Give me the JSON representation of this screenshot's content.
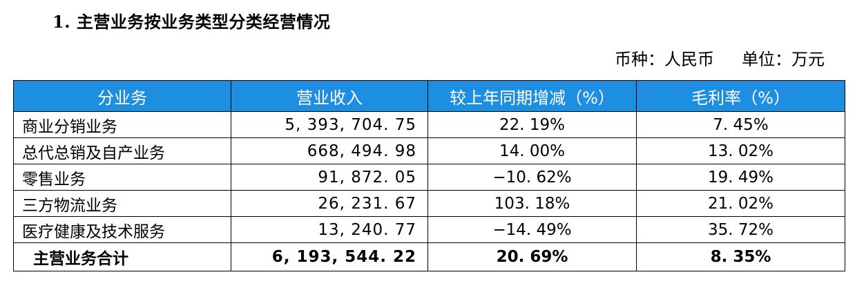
{
  "document": {
    "title": "1. 主营业务按业务类型分类经营情况",
    "currency_label": "币种：人民币",
    "unit_label": "单位：万元"
  },
  "table": {
    "headers": [
      "分业务",
      "营业收入",
      "较上年同期增减（%）",
      "毛利率（%）"
    ],
    "rows": [
      {
        "category": "商业分销业务",
        "revenue": "5, 393, 704. 75",
        "yoy_change": "22. 19%",
        "gross_margin": "7. 45%"
      },
      {
        "category": "总代总销及自产业务",
        "revenue": "668, 494. 98",
        "yoy_change": "14. 00%",
        "gross_margin": "13. 02%"
      },
      {
        "category": "零售业务",
        "revenue": "91, 872. 05",
        "yoy_change": "−10. 62%",
        "gross_margin": "19. 49%"
      },
      {
        "category": "三方物流业务",
        "revenue": "26, 231. 67",
        "yoy_change": "103. 18%",
        "gross_margin": "21. 02%"
      },
      {
        "category": "医疗健康及技术服务",
        "revenue": "13, 240. 77",
        "yoy_change": "−14. 49%",
        "gross_margin": "35. 72%"
      }
    ],
    "total": {
      "category": "主营业务合计",
      "revenue": "6, 193, 544. 22",
      "yoy_change": "20. 69%",
      "gross_margin": "8. 35%"
    }
  },
  "colors": {
    "header_background": "#1e8fe0",
    "header_text": "#ffffff"
  }
}
